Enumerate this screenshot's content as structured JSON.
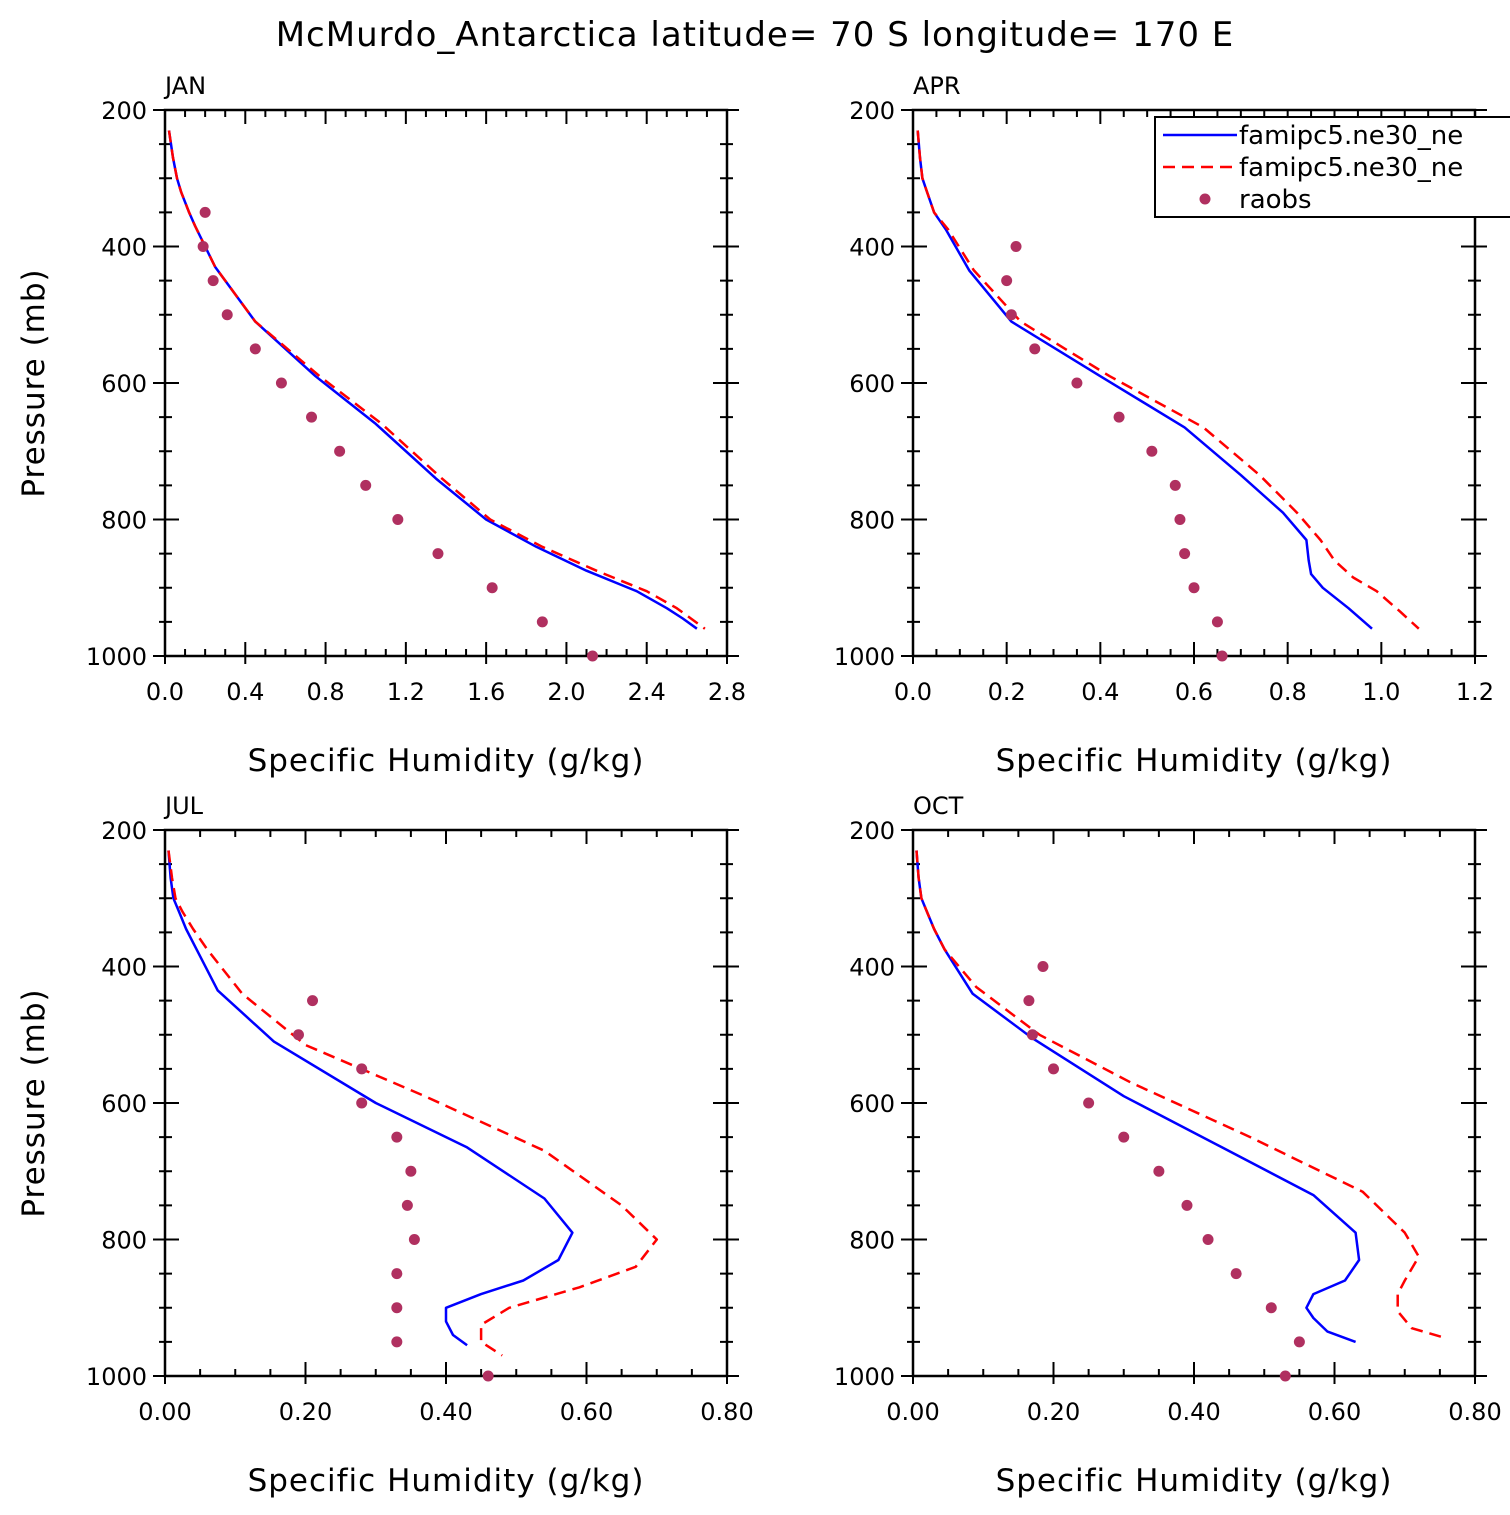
{
  "title": "McMurdo_Antarctica  latitude= 70 S longitude= 170 E",
  "legend": [
    {
      "label": "famipc5.ne30_ne",
      "color": "#0000ff",
      "style": "solid"
    },
    {
      "label": "famipc5.ne30_ne",
      "color": "#ff0000",
      "style": "dashed"
    },
    {
      "label": "raobs",
      "color": "#b03060",
      "style": "dot"
    }
  ],
  "chart_data": [
    {
      "type": "line",
      "panel": "JAN",
      "xlabel": "Specific Humidity (g/kg)",
      "ylabel": "Pressure (mb)",
      "xlim": [
        0.0,
        2.8
      ],
      "ylim": [
        200,
        1000
      ],
      "y_inverted": true,
      "xticks": [
        0.0,
        0.4,
        0.8,
        1.2,
        1.6,
        2.0,
        2.4,
        2.8
      ],
      "xtick_labels": [
        "0.0",
        "0.4",
        "0.8",
        "1.2",
        "1.6",
        "2.0",
        "2.4",
        "2.8"
      ],
      "yticks": [
        200,
        400,
        600,
        800,
        1000
      ],
      "ytick_labels": [
        "200",
        "400",
        "600",
        "800",
        "1000"
      ],
      "series": [
        {
          "name": "famipc5.ne30_ne",
          "style": "solid",
          "color": "#0000ff",
          "x": [
            0.02,
            0.04,
            0.06,
            0.08,
            0.12,
            0.15,
            0.25,
            0.45,
            0.75,
            1.05,
            1.35,
            1.6,
            1.85,
            2.1,
            2.35,
            2.5,
            2.58,
            2.65
          ],
          "y": [
            230,
            270,
            300,
            320,
            350,
            370,
            430,
            510,
            590,
            660,
            740,
            800,
            840,
            875,
            905,
            930,
            945,
            960
          ]
        },
        {
          "name": "famipc5.ne30_ne",
          "style": "dashed",
          "color": "#ff0000",
          "x": [
            0.02,
            0.04,
            0.06,
            0.08,
            0.12,
            0.15,
            0.25,
            0.45,
            0.77,
            1.08,
            1.38,
            1.62,
            1.88,
            2.15,
            2.4,
            2.55,
            2.62,
            2.69
          ],
          "y": [
            230,
            270,
            300,
            320,
            350,
            370,
            430,
            510,
            590,
            660,
            740,
            800,
            840,
            875,
            905,
            930,
            945,
            960
          ]
        },
        {
          "name": "raobs",
          "style": "points",
          "color": "#b03060",
          "x": [
            0.2,
            0.19,
            0.24,
            0.31,
            0.45,
            0.58,
            0.73,
            0.87,
            1.0,
            1.16,
            1.36,
            1.63,
            1.88,
            2.13
          ],
          "y": [
            350,
            400,
            450,
            500,
            550,
            600,
            650,
            700,
            750,
            800,
            850,
            900,
            950,
            1000
          ]
        }
      ]
    },
    {
      "type": "line",
      "panel": "APR",
      "xlabel": "Specific Humidity (g/kg)",
      "ylabel": "",
      "xlim": [
        0.0,
        1.2
      ],
      "ylim": [
        200,
        1000
      ],
      "y_inverted": true,
      "xticks": [
        0.0,
        0.2,
        0.4,
        0.6,
        0.8,
        1.0,
        1.2
      ],
      "xtick_labels": [
        "0.0",
        "0.2",
        "0.4",
        "0.6",
        "0.8",
        "1.0",
        "1.2"
      ],
      "yticks": [
        200,
        400,
        600,
        800,
        1000
      ],
      "ytick_labels": [
        "200",
        "400",
        "600",
        "800",
        "1000"
      ],
      "series": [
        {
          "name": "famipc5.ne30_ne",
          "style": "solid",
          "color": "#0000ff",
          "x": [
            0.01,
            0.015,
            0.02,
            0.03,
            0.045,
            0.07,
            0.12,
            0.21,
            0.4,
            0.58,
            0.7,
            0.79,
            0.84,
            0.845,
            0.85,
            0.875,
            0.93,
            0.98
          ],
          "y": [
            230,
            270,
            300,
            320,
            350,
            375,
            435,
            510,
            590,
            665,
            735,
            790,
            830,
            860,
            880,
            900,
            930,
            960
          ]
        },
        {
          "name": "famipc5.ne30_ne",
          "style": "dashed",
          "color": "#ff0000",
          "x": [
            0.01,
            0.015,
            0.02,
            0.03,
            0.045,
            0.075,
            0.13,
            0.23,
            0.42,
            0.62,
            0.74,
            0.82,
            0.87,
            0.9,
            0.94,
            0.99,
            1.04,
            1.08
          ],
          "y": [
            230,
            270,
            300,
            320,
            350,
            375,
            435,
            510,
            590,
            665,
            735,
            790,
            830,
            860,
            885,
            905,
            935,
            960
          ]
        },
        {
          "name": "raobs",
          "style": "points",
          "color": "#b03060",
          "x": [
            0.22,
            0.2,
            0.21,
            0.26,
            0.35,
            0.44,
            0.51,
            0.56,
            0.57,
            0.58,
            0.6,
            0.65,
            0.66
          ],
          "y": [
            400,
            450,
            500,
            550,
            600,
            650,
            700,
            750,
            800,
            850,
            900,
            950,
            1000
          ]
        }
      ]
    },
    {
      "type": "line",
      "panel": "JUL",
      "xlabel": "Specific Humidity (g/kg)",
      "ylabel": "Pressure (mb)",
      "xlim": [
        0.0,
        0.8
      ],
      "ylim": [
        200,
        1000
      ],
      "y_inverted": true,
      "xticks": [
        0.0,
        0.2,
        0.4,
        0.6,
        0.8
      ],
      "xtick_labels": [
        "0.00",
        "0.20",
        "0.40",
        "0.60",
        "0.80"
      ],
      "yticks": [
        200,
        400,
        600,
        800,
        1000
      ],
      "ytick_labels": [
        "200",
        "400",
        "600",
        "800",
        "1000"
      ],
      "series": [
        {
          "name": "famipc5.ne30_ne",
          "style": "solid",
          "color": "#0000ff",
          "x": [
            0.005,
            0.008,
            0.012,
            0.02,
            0.03,
            0.045,
            0.075,
            0.155,
            0.3,
            0.43,
            0.54,
            0.58,
            0.56,
            0.51,
            0.45,
            0.4,
            0.4,
            0.41,
            0.43
          ],
          "y": [
            230,
            270,
            300,
            320,
            345,
            375,
            435,
            510,
            600,
            665,
            740,
            790,
            830,
            860,
            880,
            900,
            920,
            940,
            955
          ]
        },
        {
          "name": "famipc5.ne30_ne",
          "style": "dashed",
          "color": "#ff0000",
          "x": [
            0.005,
            0.01,
            0.015,
            0.025,
            0.04,
            0.06,
            0.11,
            0.2,
            0.37,
            0.54,
            0.65,
            0.7,
            0.67,
            0.59,
            0.49,
            0.45,
            0.45,
            0.48
          ],
          "y": [
            230,
            270,
            300,
            320,
            345,
            375,
            440,
            515,
            590,
            670,
            750,
            800,
            840,
            870,
            900,
            925,
            950,
            970
          ]
        },
        {
          "name": "raobs",
          "style": "points",
          "color": "#b03060",
          "x": [
            0.21,
            0.19,
            0.28,
            0.28,
            0.33,
            0.35,
            0.345,
            0.355,
            0.33,
            0.33,
            0.33,
            0.46
          ],
          "y": [
            450,
            500,
            550,
            600,
            650,
            700,
            750,
            800,
            850,
            900,
            950,
            1000
          ]
        }
      ]
    },
    {
      "type": "line",
      "panel": "OCT",
      "xlabel": "Specific Humidity (g/kg)",
      "ylabel": "",
      "xlim": [
        0.0,
        0.8
      ],
      "ylim": [
        200,
        1000
      ],
      "y_inverted": true,
      "xticks": [
        0.0,
        0.2,
        0.4,
        0.6,
        0.8
      ],
      "xtick_labels": [
        "0.00",
        "0.20",
        "0.40",
        "0.60",
        "0.80"
      ],
      "yticks": [
        200,
        400,
        600,
        800,
        1000
      ],
      "ytick_labels": [
        "200",
        "400",
        "600",
        "800",
        "1000"
      ],
      "series": [
        {
          "name": "famipc5.ne30_ne",
          "style": "solid",
          "color": "#0000ff",
          "x": [
            0.005,
            0.008,
            0.012,
            0.02,
            0.03,
            0.045,
            0.085,
            0.17,
            0.3,
            0.44,
            0.57,
            0.63,
            0.635,
            0.615,
            0.57,
            0.56,
            0.57,
            0.59,
            0.63
          ],
          "y": [
            230,
            270,
            300,
            320,
            345,
            375,
            440,
            505,
            590,
            665,
            735,
            790,
            830,
            860,
            880,
            900,
            915,
            935,
            950
          ]
        },
        {
          "name": "famipc5.ne30_ne",
          "style": "dashed",
          "color": "#ff0000",
          "x": [
            0.005,
            0.008,
            0.012,
            0.02,
            0.03,
            0.045,
            0.09,
            0.18,
            0.31,
            0.48,
            0.64,
            0.7,
            0.72,
            0.7,
            0.69,
            0.69,
            0.71,
            0.76
          ],
          "y": [
            230,
            270,
            300,
            320,
            345,
            375,
            430,
            500,
            570,
            650,
            730,
            790,
            825,
            860,
            880,
            905,
            930,
            945
          ]
        },
        {
          "name": "raobs",
          "style": "points",
          "color": "#b03060",
          "x": [
            0.185,
            0.165,
            0.17,
            0.2,
            0.25,
            0.3,
            0.35,
            0.39,
            0.42,
            0.46,
            0.51,
            0.55,
            0.53
          ],
          "y": [
            400,
            450,
            500,
            550,
            600,
            650,
            700,
            750,
            800,
            850,
            900,
            950,
            1000
          ]
        }
      ]
    }
  ]
}
